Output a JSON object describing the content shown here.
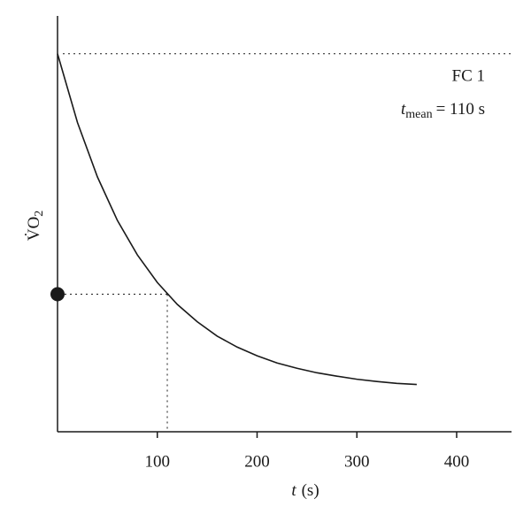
{
  "chart_data": {
    "type": "line",
    "x_label": {
      "symbol": "t",
      "unit": "(s)"
    },
    "y_label": {
      "text": "V̇O",
      "subscript": "2"
    },
    "annotations": {
      "curve_name": "FC 1",
      "mean": {
        "symbol": "t",
        "subscript": "mean",
        "text": "= 110 s"
      }
    },
    "x": [
      0,
      20,
      40,
      60,
      80,
      100,
      120,
      140,
      160,
      180,
      200,
      220,
      240,
      260,
      280,
      300,
      320,
      340,
      360
    ],
    "series": [
      {
        "color": "#1a1a1a",
        "values": [
          1.0,
          0.818,
          0.674,
          0.559,
          0.468,
          0.395,
          0.337,
          0.291,
          0.253,
          0.224,
          0.201,
          0.182,
          0.168,
          0.156,
          0.147,
          0.139,
          0.133,
          0.128,
          0.125
        ]
      }
    ],
    "reference_y": 1.0,
    "mean_point": {
      "x": 110,
      "y": 0.364
    },
    "xlim": [
      0,
      455
    ],
    "ylim": [
      0,
      1.1
    ],
    "xticks": [
      100,
      200,
      300,
      400
    ]
  }
}
